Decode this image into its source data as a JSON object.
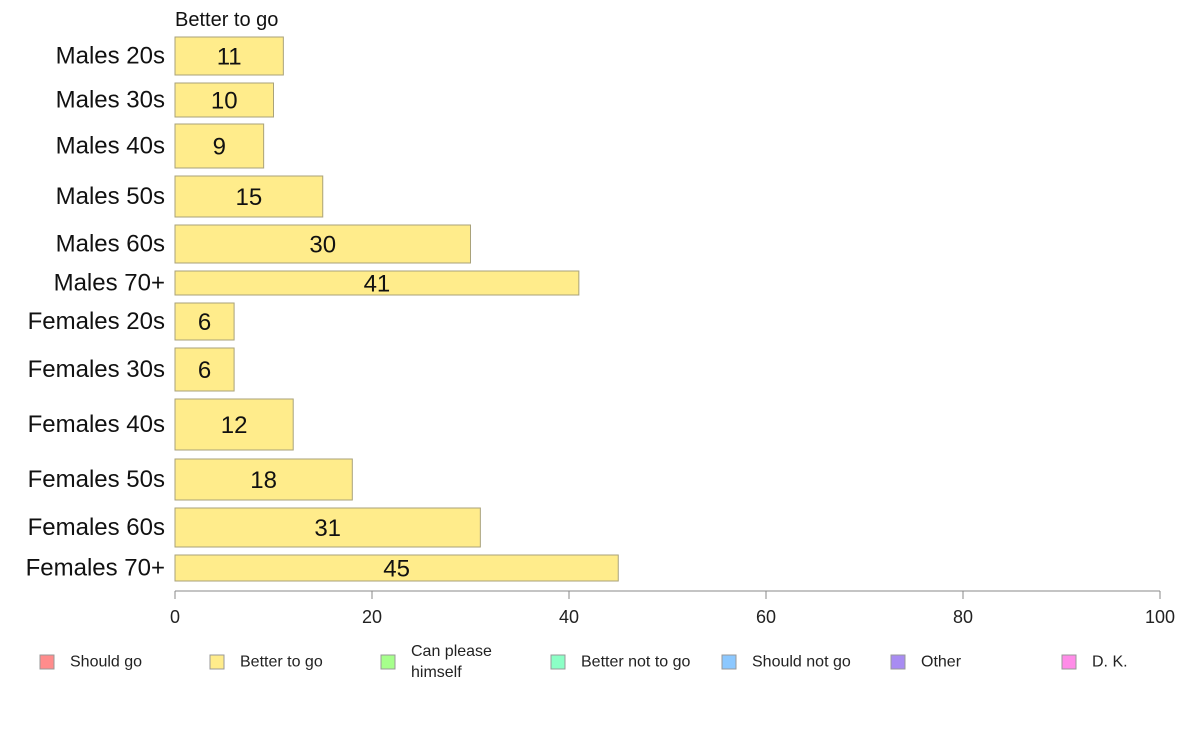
{
  "chart_data": {
    "type": "bar",
    "orientation": "horizontal",
    "categories": [
      "Males 20s",
      "Males 30s",
      "Males 40s",
      "Males 50s",
      "Males 60s",
      "Males 70+",
      "Females 20s",
      "Females 30s",
      "Females 40s",
      "Females 50s",
      "Females 60s",
      "Females 70+"
    ],
    "series": [
      {
        "name": "Better to go",
        "color": "#ffec8b",
        "values": [
          11,
          10,
          9,
          15,
          30,
          41,
          6,
          6,
          12,
          18,
          31,
          45
        ]
      }
    ],
    "xlim": [
      0,
      100
    ],
    "xticks": [
      0,
      20,
      40,
      60,
      80,
      100
    ],
    "grid": false,
    "legend_position": "bottom",
    "legend": [
      {
        "label": "Should go",
        "color": "#ff8c8c"
      },
      {
        "label": "Better to go",
        "color": "#ffec8b"
      },
      {
        "label": "Can please\nhimself",
        "color": "#a6ff8c"
      },
      {
        "label": "Better not to go",
        "color": "#8cffc6"
      },
      {
        "label": "Should not go",
        "color": "#8cc8ff"
      },
      {
        "label": "Other",
        "color": "#a88cf2"
      },
      {
        "label": "D. K.",
        "color": "#ff8ce8"
      }
    ]
  }
}
